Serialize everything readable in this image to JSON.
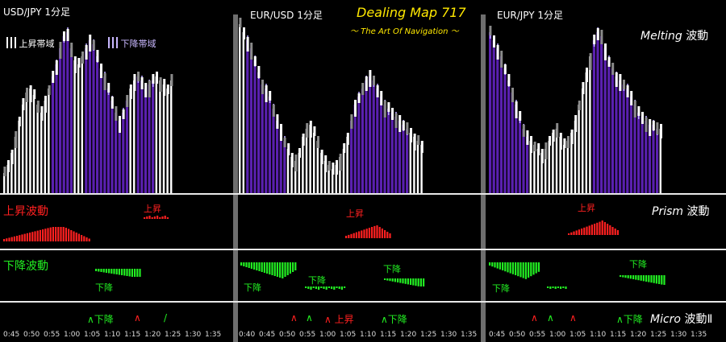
{
  "panels": [
    {
      "title": "USD/JPY 1分足",
      "axis": [
        "0:45",
        "0:50",
        "0:55",
        "1:00",
        "1:05",
        "1:10",
        "1:15",
        "1:20",
        "1:25",
        "1:30",
        "1:35"
      ]
    },
    {
      "title": "EUR/USD 1分足",
      "axis": [
        "0:40",
        "0:45",
        "0:50",
        "0:55",
        "1:00",
        "1:05",
        "1:10",
        "1:15",
        "1:20",
        "1:25",
        "1:30",
        "1:35"
      ]
    },
    {
      "title": "EUR/JPY 1分足",
      "axis": [
        "0:45",
        "0:50",
        "0:55",
        "1:00",
        "1:05",
        "1:10",
        "1:15",
        "1:20",
        "1:25",
        "1:30",
        "1:35"
      ]
    }
  ],
  "brand": {
    "name": "Dealing Map 717",
    "tagline": "～ The Art Of Navigation ～"
  },
  "legend": {
    "up": "上昇帯域",
    "down": "下降帯域"
  },
  "indicators": {
    "melting": {
      "name": "Melting",
      "suffix": "波動"
    },
    "prism": {
      "name": "Prism",
      "suffix": "波動"
    },
    "micro": {
      "name": "Micro",
      "suffix": "波動Ⅱ"
    }
  },
  "labels": {
    "up_wave": "上昇波動",
    "down_wave": "下降波動",
    "up": "上昇",
    "down": "下降",
    "up_arrow": "∧"
  },
  "colors": {
    "up_band": "#ffffff",
    "down_band": "#5a20b0",
    "candle_gray": "#8a8a8a",
    "red": "#ff2020",
    "green": "#22ee22",
    "brand": "#ffe800"
  }
}
